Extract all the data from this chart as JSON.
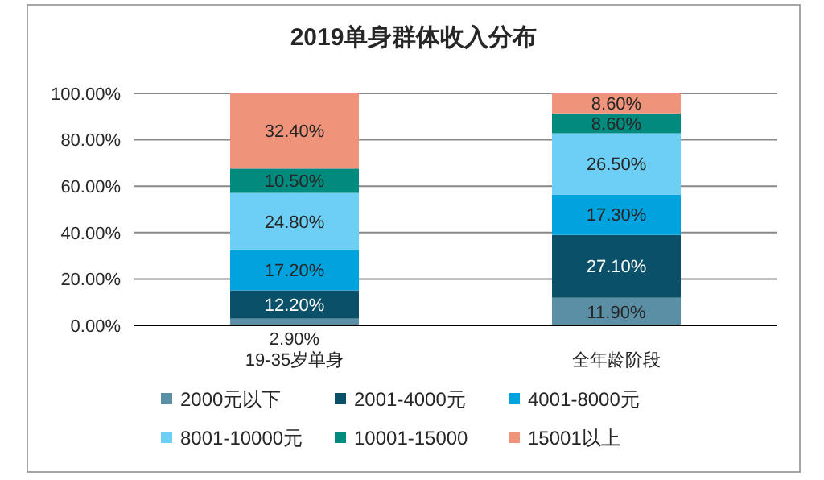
{
  "chart_data": {
    "type": "bar",
    "stacked": true,
    "title": "2019单身群体收入分布",
    "categories": [
      "19-35岁单身",
      "全年龄阶段"
    ],
    "ylim": [
      0,
      100
    ],
    "yticks": [
      {
        "value": 0,
        "label": "0.00%"
      },
      {
        "value": 20,
        "label": "20.00%"
      },
      {
        "value": 40,
        "label": "40.00%"
      },
      {
        "value": 60,
        "label": "60.00%"
      },
      {
        "value": 80,
        "label": "80.00%"
      },
      {
        "value": 100,
        "label": "100.00%"
      }
    ],
    "grid": "y",
    "legend": "bottom",
    "series": [
      {
        "name": "2000元以下",
        "color": "#5b8fa6",
        "values": [
          2.9,
          11.9
        ],
        "value_labels": [
          "2.90%",
          "11.90%"
        ]
      },
      {
        "name": "2001-4000元",
        "color": "#0b5069",
        "values": [
          12.2,
          27.1
        ],
        "value_labels": [
          "12.20%",
          "27.10%"
        ]
      },
      {
        "name": "4001-8000元",
        "color": "#00a3de",
        "values": [
          17.2,
          17.3
        ],
        "value_labels": [
          "17.20%",
          "17.30%"
        ]
      },
      {
        "name": "8001-10000元",
        "color": "#6dcff6",
        "values": [
          24.8,
          26.5
        ],
        "value_labels": [
          "24.80%",
          "26.50%"
        ]
      },
      {
        "name": "10001-15000",
        "color": "#008b7e",
        "values": [
          10.5,
          8.6
        ],
        "value_labels": [
          "10.50%",
          "8.60%"
        ]
      },
      {
        "name": "15001以上",
        "color": "#ef937a",
        "values": [
          32.4,
          8.6
        ],
        "value_labels": [
          "32.40%",
          "8.60%"
        ]
      }
    ]
  }
}
